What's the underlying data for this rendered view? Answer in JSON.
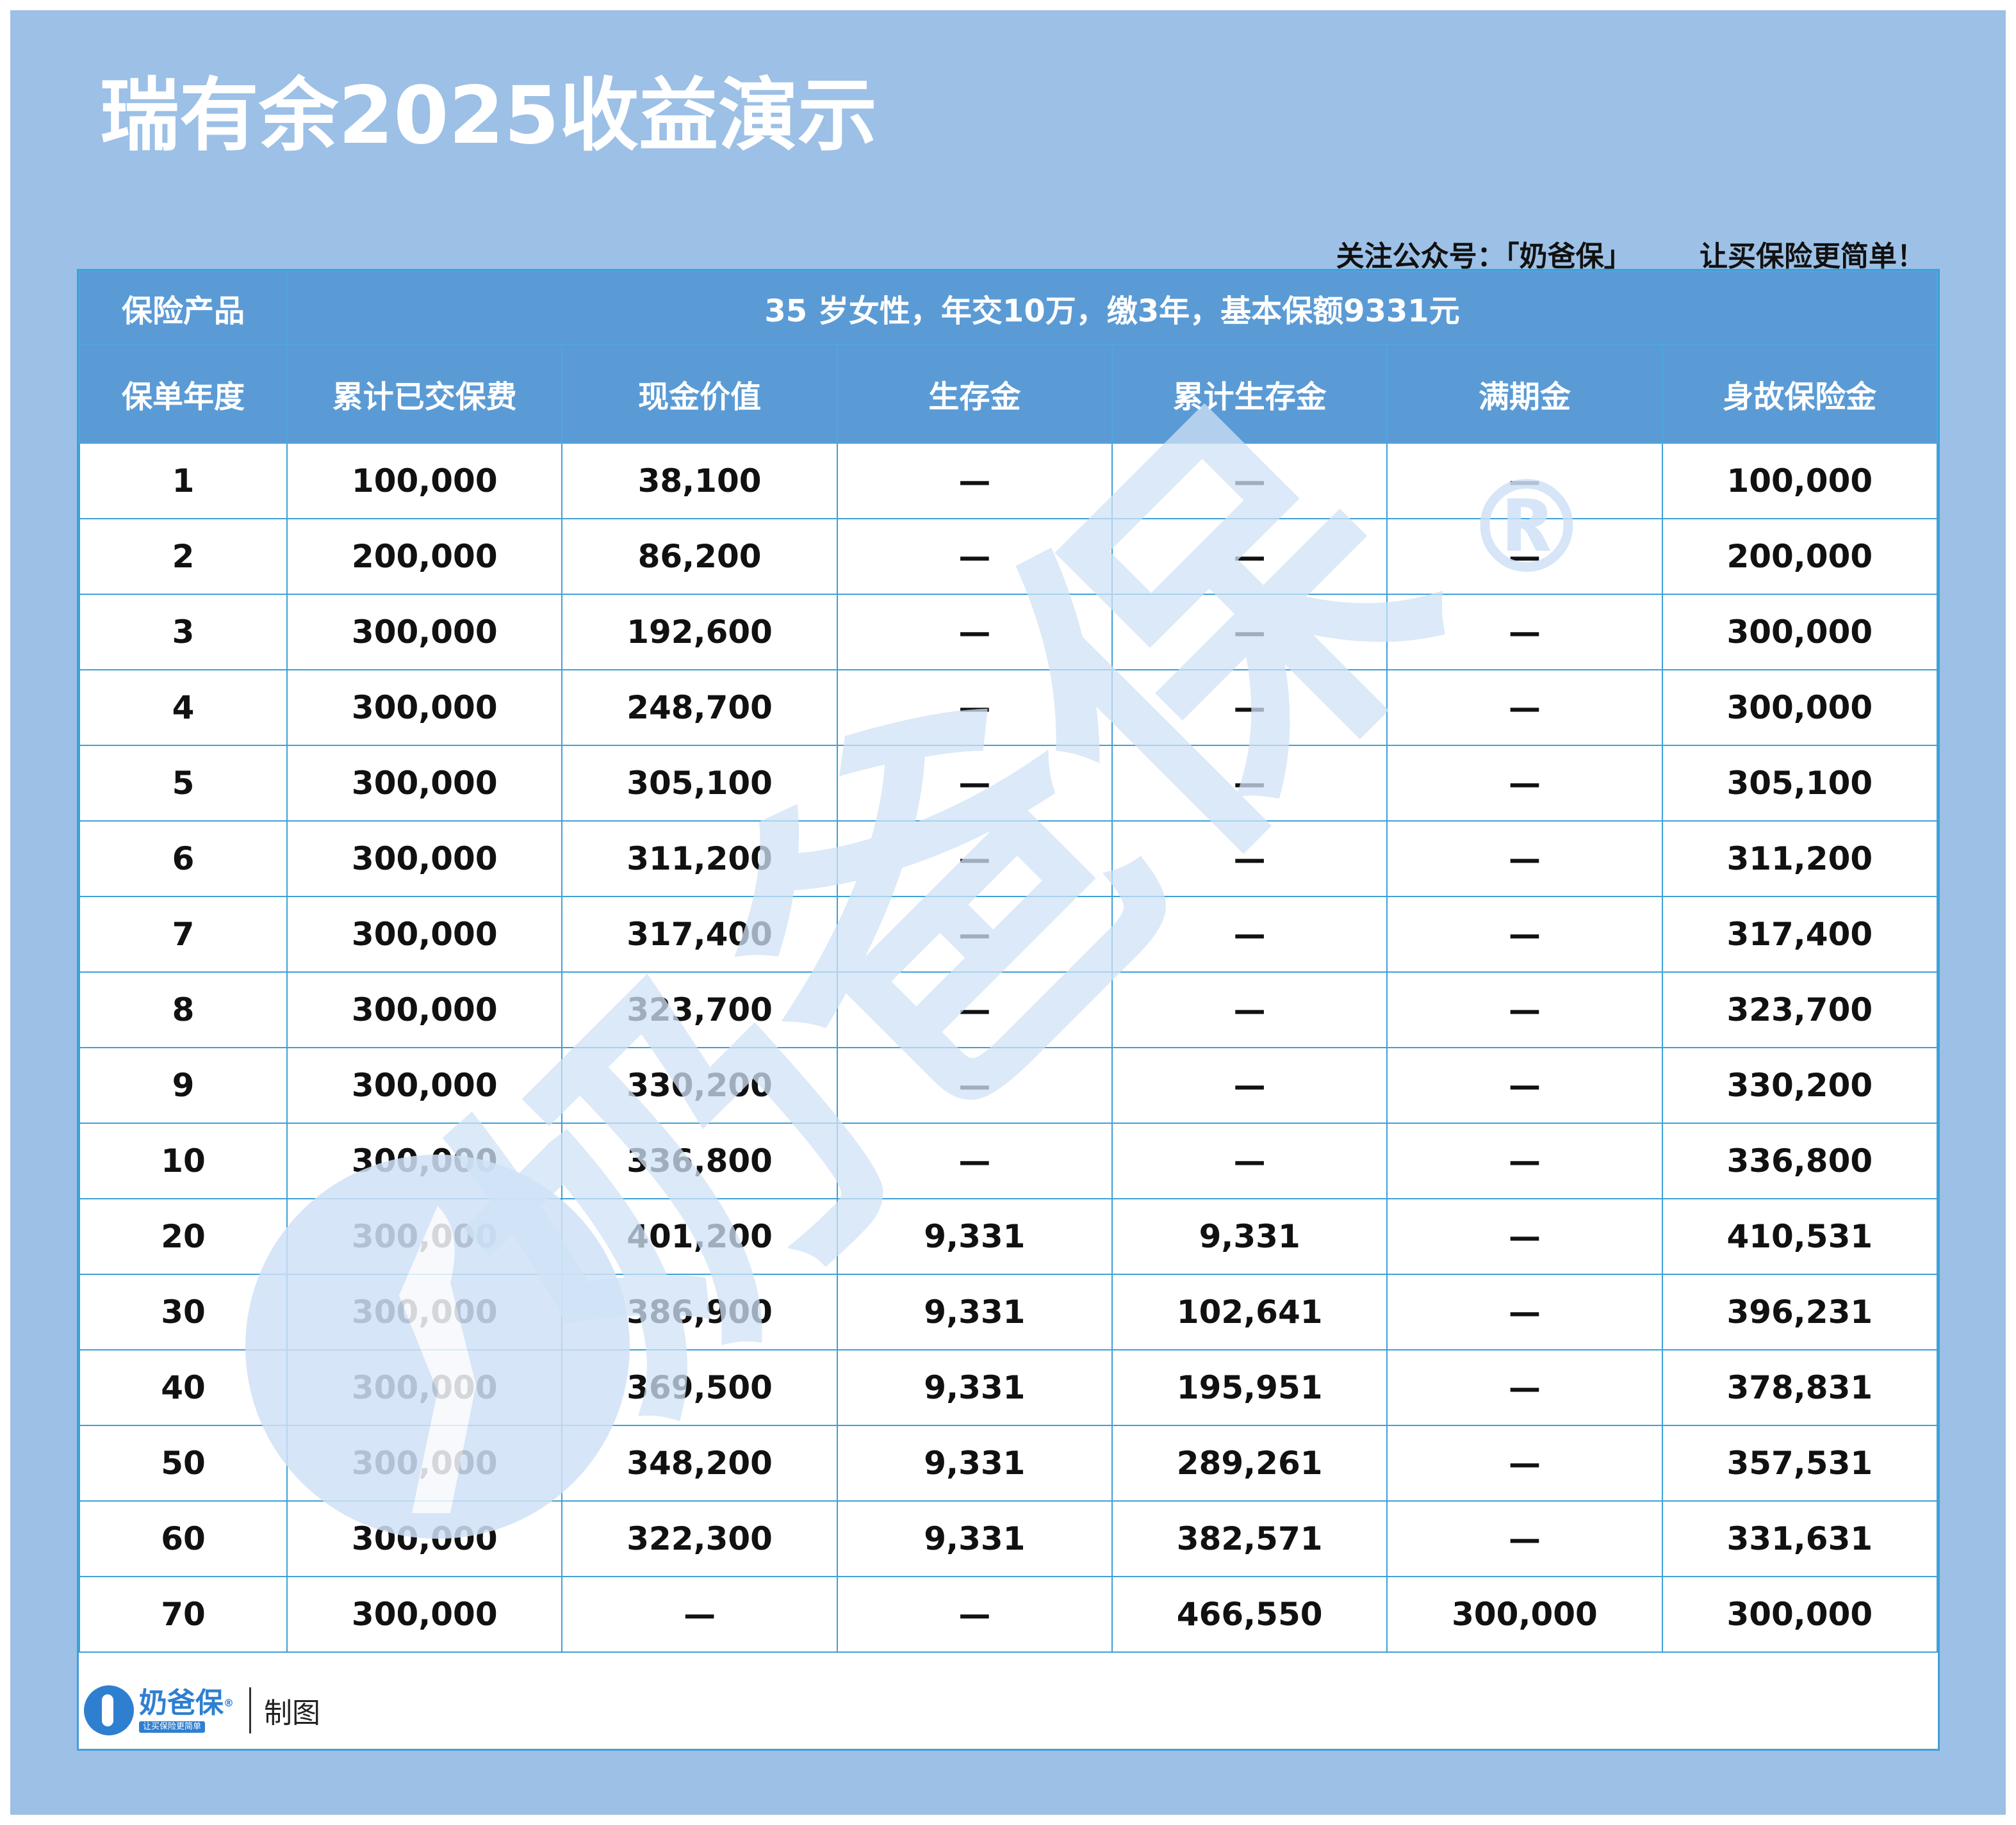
{
  "title": "瑞有余2025收益演示",
  "follow": {
    "account": "关注公众号：「奶爸保」",
    "slogan": "让买保险更简单！"
  },
  "product": {
    "label": "保险产品",
    "description": "35 岁女性，年交10万，缴3年，基本保额9331元"
  },
  "columns": [
    "保单年度",
    "累计已交保费",
    "现金价值",
    "生存金",
    "累计生存金",
    "满期金",
    "身故保险金"
  ],
  "rows": [
    [
      "1",
      "100,000",
      "38,100",
      "—",
      "—",
      "—",
      "100,000"
    ],
    [
      "2",
      "200,000",
      "86,200",
      "—",
      "—",
      "—",
      "200,000"
    ],
    [
      "3",
      "300,000",
      "192,600",
      "—",
      "—",
      "—",
      "300,000"
    ],
    [
      "4",
      "300,000",
      "248,700",
      "—",
      "—",
      "—",
      "300,000"
    ],
    [
      "5",
      "300,000",
      "305,100",
      "—",
      "—",
      "—",
      "305,100"
    ],
    [
      "6",
      "300,000",
      "311,200",
      "—",
      "—",
      "—",
      "311,200"
    ],
    [
      "7",
      "300,000",
      "317,400",
      "—",
      "—",
      "—",
      "317,400"
    ],
    [
      "8",
      "300,000",
      "323,700",
      "—",
      "—",
      "—",
      "323,700"
    ],
    [
      "9",
      "300,000",
      "330,200",
      "—",
      "—",
      "—",
      "330,200"
    ],
    [
      "10",
      "300,000",
      "336,800",
      "—",
      "—",
      "—",
      "336,800"
    ],
    [
      "20",
      "300,000",
      "401,200",
      "9,331",
      "9,331",
      "—",
      "410,531"
    ],
    [
      "30",
      "300,000",
      "386,900",
      "9,331",
      "102,641",
      "—",
      "396,231"
    ],
    [
      "40",
      "300,000",
      "369,500",
      "9,331",
      "195,951",
      "—",
      "378,831"
    ],
    [
      "50",
      "300,000",
      "348,200",
      "9,331",
      "289,261",
      "—",
      "357,531"
    ],
    [
      "60",
      "300,000",
      "322,300",
      "9,331",
      "382,571",
      "—",
      "331,631"
    ],
    [
      "70",
      "300,000",
      "—",
      "—",
      "466,550",
      "300,000",
      "300,000"
    ]
  ],
  "watermark": {
    "text": "奶爸保",
    "mark": "®",
    "color": "#cfe1f6"
  },
  "footer": {
    "logo_name": "奶爸保",
    "logo_mark": "®",
    "logo_slogan": "让买保险更简单",
    "maker": "制图"
  },
  "colors": {
    "frame": "#9cc0e6",
    "header": "#5b9bd5",
    "grid": "#3fa0d8",
    "brand": "#2f7fd0"
  }
}
